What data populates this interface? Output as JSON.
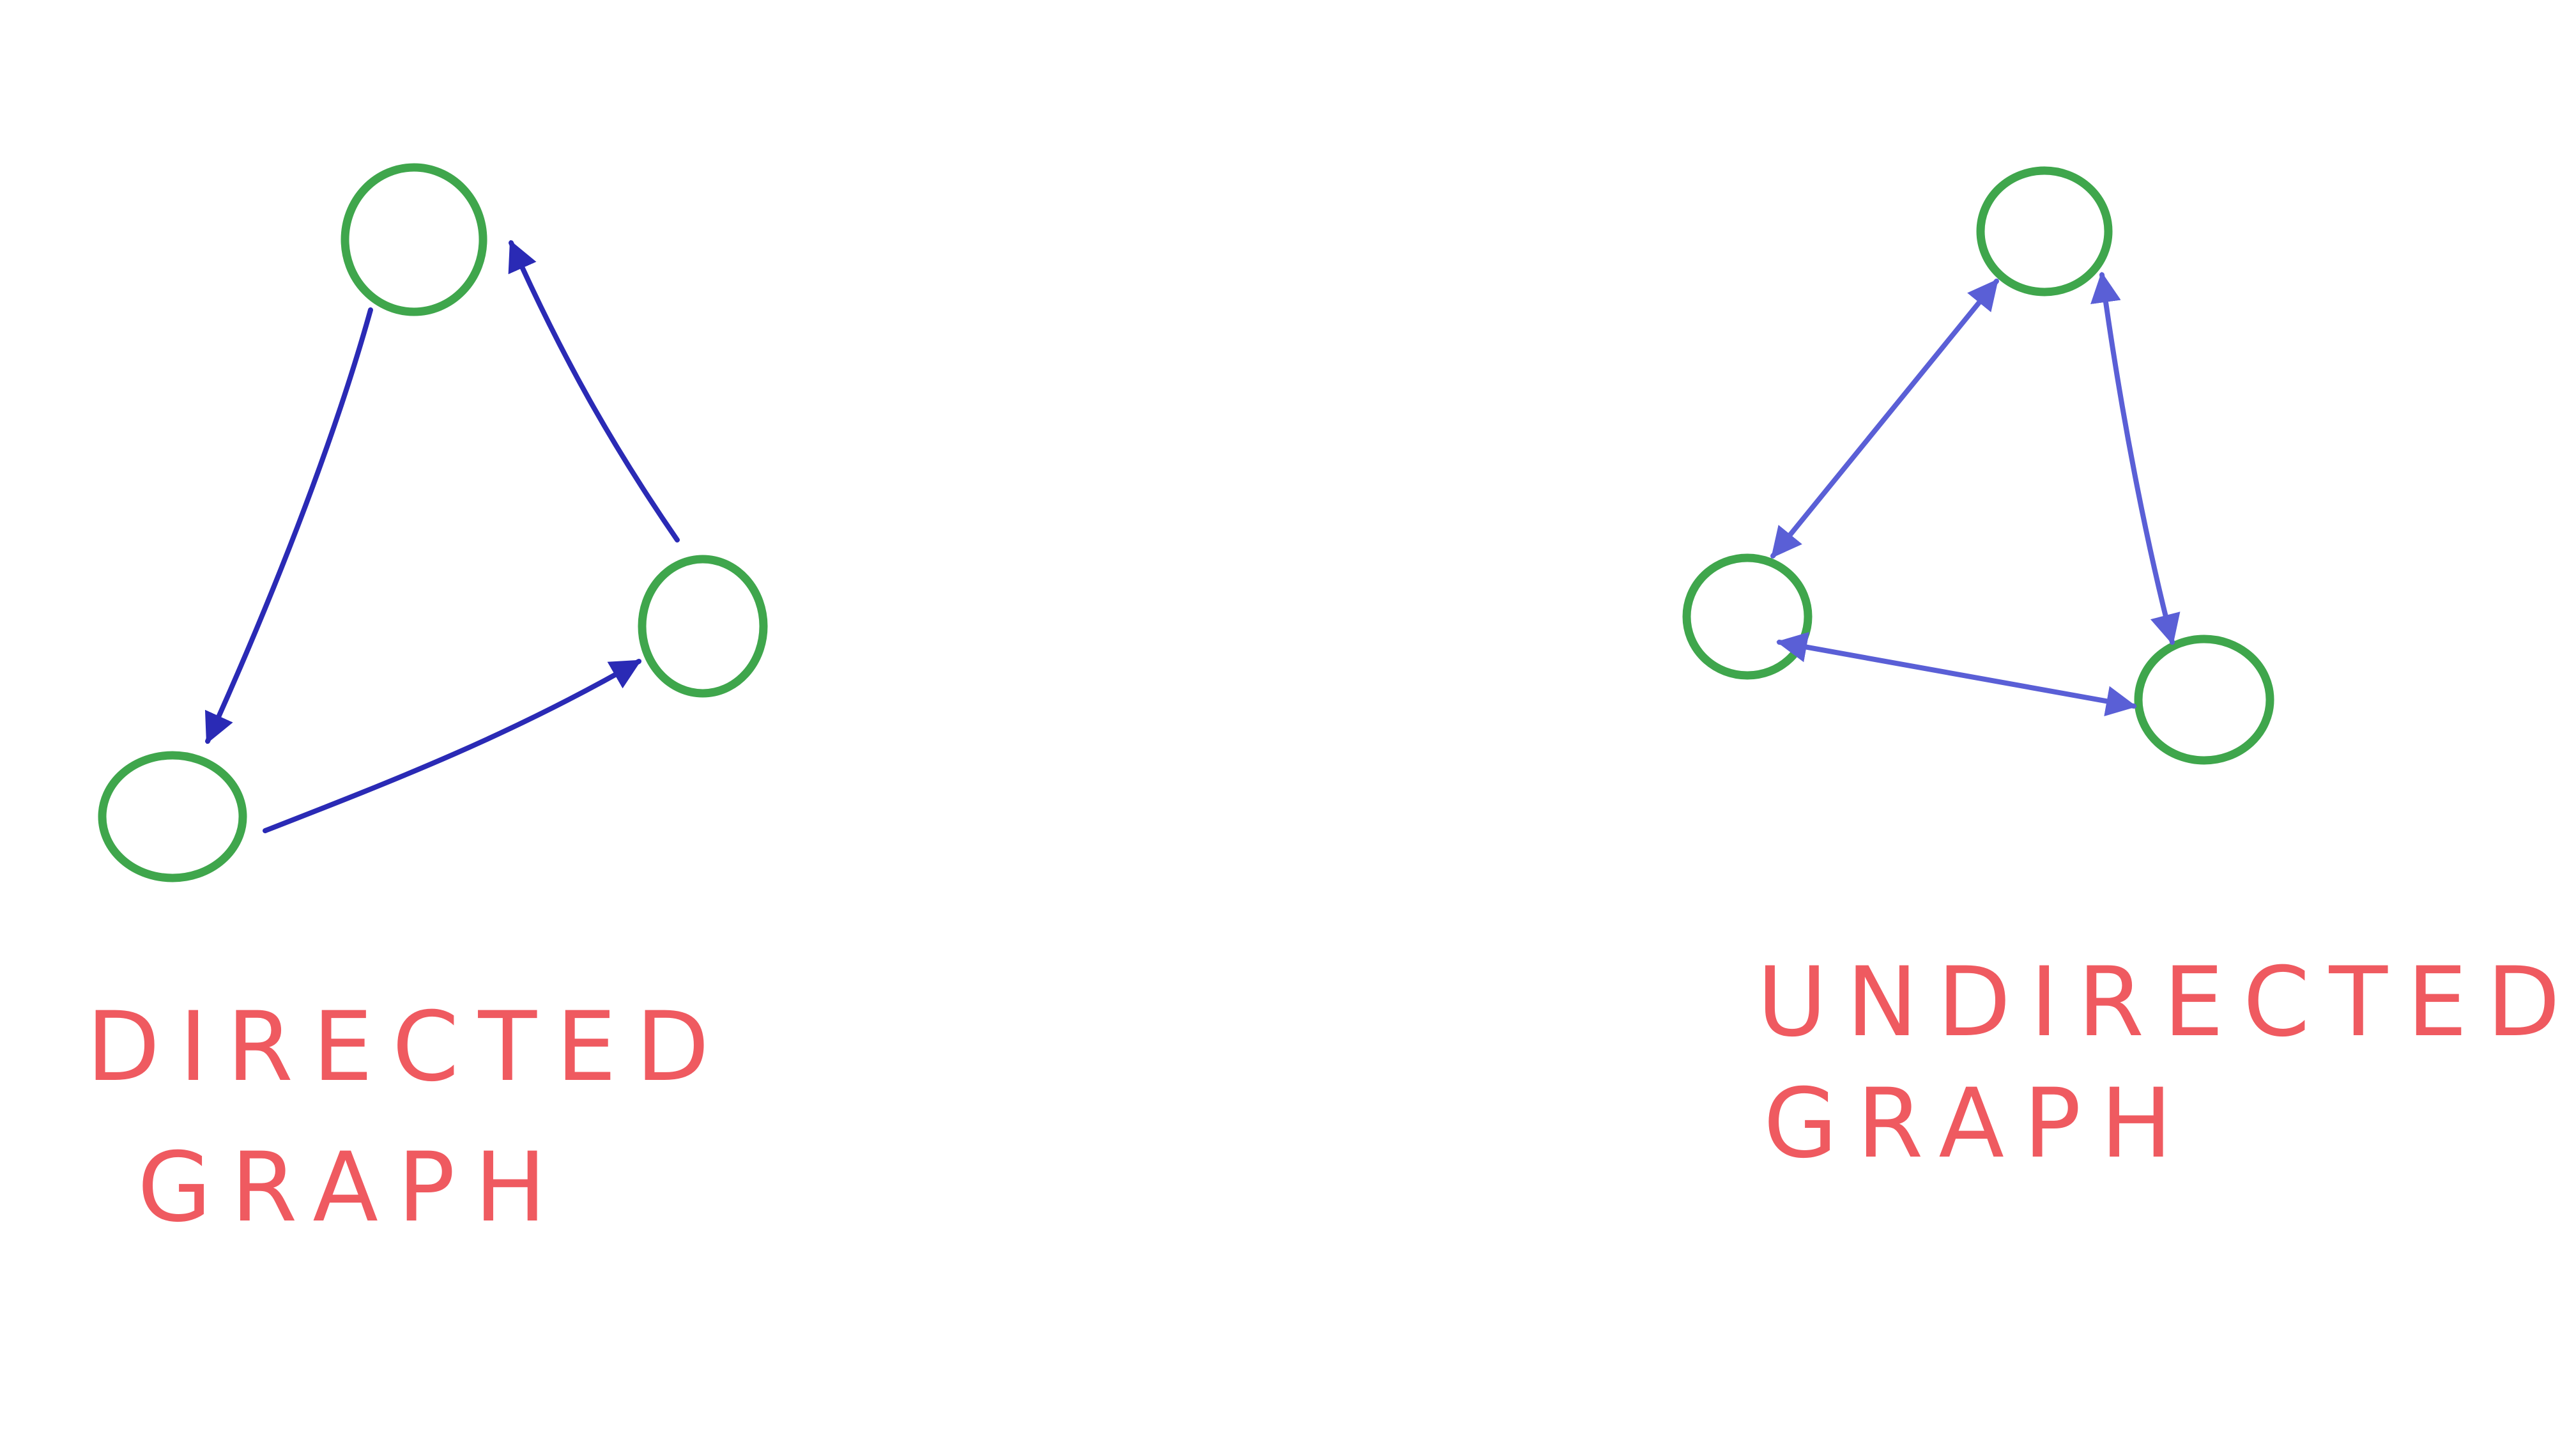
{
  "colors": {
    "background": "#ffffff",
    "node_stroke": "#3fa64c",
    "directed_edge": "#2a2ab5",
    "undirected_edge": "#5a5fd6",
    "caption": "#ef5a60"
  },
  "directed_graph": {
    "caption_line1": "DIRECTED",
    "caption_line2": "GRAPH",
    "nodes": [
      "top",
      "bottom-left",
      "right"
    ],
    "edges": [
      {
        "from": "top",
        "to": "bottom-left",
        "arrow": "end"
      },
      {
        "from": "bottom-left",
        "to": "right",
        "arrow": "end"
      },
      {
        "from": "right",
        "to": "top",
        "arrow": "end"
      }
    ]
  },
  "undirected_graph": {
    "caption_line1": "UNDIRECTED",
    "caption_line2": "GRAPH",
    "nodes": [
      "top",
      "left",
      "bottom-right"
    ],
    "edges": [
      {
        "from": "left",
        "to": "top",
        "arrow": "both"
      },
      {
        "from": "top",
        "to": "bottom-right",
        "arrow": "both"
      },
      {
        "from": "left",
        "to": "bottom-right",
        "arrow": "both"
      }
    ]
  }
}
